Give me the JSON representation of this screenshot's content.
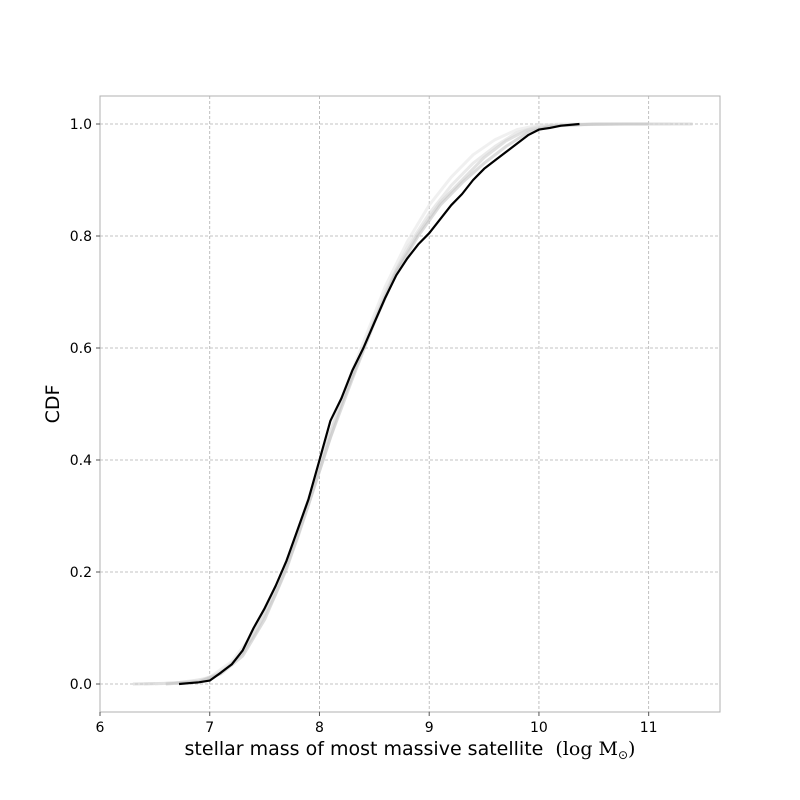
{
  "chart_data": {
    "type": "line",
    "xlabel": "stellar mass of most massive satellite",
    "xlabel_unit": "(log M",
    "xlabel_unit_sub": "⊙",
    "xlabel_unit_close": ")",
    "ylabel": "CDF",
    "xlim": [
      6.0,
      11.65
    ],
    "ylim": [
      -0.05,
      1.05
    ],
    "xticks": [
      6,
      7,
      8,
      9,
      10,
      11
    ],
    "yticks": [
      0.0,
      0.2,
      0.4,
      0.6,
      0.8,
      1.0
    ],
    "xtick_labels": [
      "6",
      "7",
      "8",
      "9",
      "10",
      "11"
    ],
    "ytick_labels": [
      "0.0",
      "0.2",
      "0.4",
      "0.6",
      "0.8",
      "1.0"
    ],
    "grid": true,
    "series": [
      {
        "style": "main",
        "color": "#000000",
        "x": [
          6.72,
          6.9,
          7.0,
          7.1,
          7.2,
          7.3,
          7.4,
          7.5,
          7.6,
          7.7,
          7.8,
          7.9,
          8.0,
          8.1,
          8.2,
          8.3,
          8.4,
          8.5,
          8.6,
          8.7,
          8.8,
          8.9,
          9.0,
          9.1,
          9.2,
          9.3,
          9.4,
          9.5,
          9.6,
          9.7,
          9.8,
          9.9,
          10.0,
          10.1,
          10.2,
          10.37
        ],
        "y": [
          0.0,
          0.003,
          0.006,
          0.02,
          0.035,
          0.06,
          0.1,
          0.135,
          0.175,
          0.22,
          0.275,
          0.33,
          0.4,
          0.47,
          0.51,
          0.56,
          0.6,
          0.645,
          0.69,
          0.73,
          0.76,
          0.785,
          0.805,
          0.83,
          0.855,
          0.875,
          0.9,
          0.92,
          0.935,
          0.95,
          0.965,
          0.98,
          0.99,
          0.993,
          0.997,
          1.0
        ]
      },
      {
        "style": "background",
        "color": "#c8c8c8",
        "x": [
          6.3,
          6.6,
          6.9,
          7.1,
          7.3,
          7.5,
          7.7,
          7.9,
          8.1,
          8.3,
          8.5,
          8.7,
          8.9,
          9.1,
          9.3,
          9.5,
          9.7,
          9.9,
          10.1,
          10.4,
          10.8,
          11.4
        ],
        "y": [
          0.0,
          0.001,
          0.005,
          0.02,
          0.055,
          0.125,
          0.215,
          0.33,
          0.45,
          0.55,
          0.65,
          0.74,
          0.805,
          0.86,
          0.9,
          0.94,
          0.97,
          0.99,
          0.997,
          0.999,
          1.0,
          1.0
        ]
      },
      {
        "style": "background",
        "color": "#d9d9d9",
        "x": [
          6.4,
          6.7,
          7.0,
          7.2,
          7.4,
          7.6,
          7.8,
          8.0,
          8.2,
          8.4,
          8.6,
          8.8,
          9.0,
          9.2,
          9.4,
          9.6,
          9.8,
          10.0,
          10.3,
          10.7,
          11.2
        ],
        "y": [
          0.0,
          0.002,
          0.01,
          0.035,
          0.085,
          0.16,
          0.26,
          0.38,
          0.5,
          0.6,
          0.7,
          0.78,
          0.84,
          0.89,
          0.93,
          0.96,
          0.985,
          0.996,
          0.999,
          1.0,
          1.0
        ]
      },
      {
        "style": "background",
        "color": "#e3e3e3",
        "x": [
          6.5,
          6.8,
          7.0,
          7.2,
          7.4,
          7.6,
          7.8,
          8.0,
          8.2,
          8.4,
          8.6,
          8.8,
          9.0,
          9.2,
          9.4,
          9.6,
          9.8,
          10.0,
          10.2,
          10.6,
          11.0
        ],
        "y": [
          0.0,
          0.003,
          0.012,
          0.04,
          0.09,
          0.17,
          0.27,
          0.39,
          0.51,
          0.61,
          0.71,
          0.79,
          0.855,
          0.905,
          0.945,
          0.972,
          0.99,
          0.998,
          1.0,
          1.0,
          1.0
        ]
      },
      {
        "style": "background",
        "color": "#bfbfbf",
        "x": [
          6.6,
          6.9,
          7.1,
          7.3,
          7.5,
          7.7,
          7.9,
          8.1,
          8.3,
          8.5,
          8.7,
          8.9,
          9.1,
          9.3,
          9.5,
          9.7,
          9.9,
          10.1,
          10.5,
          11.0
        ],
        "y": [
          0.0,
          0.004,
          0.018,
          0.05,
          0.115,
          0.205,
          0.32,
          0.44,
          0.545,
          0.645,
          0.735,
          0.8,
          0.855,
          0.895,
          0.93,
          0.96,
          0.985,
          0.996,
          1.0,
          1.0
        ]
      }
    ]
  }
}
